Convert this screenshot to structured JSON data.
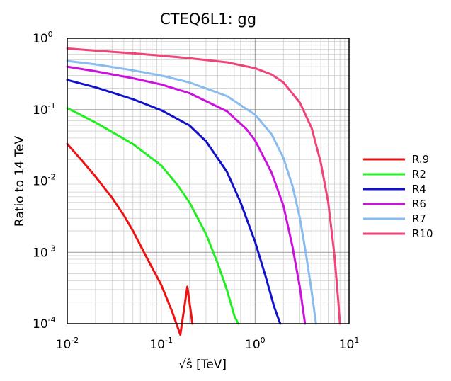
{
  "chart_data": {
    "type": "line",
    "title": "CTEQ6L1: gg",
    "xlabel": "√ŝ [TeV]",
    "ylabel": "Ratio to 14 TeV",
    "xscale": "log",
    "yscale": "log",
    "xlim": [
      0.01,
      10
    ],
    "ylim": [
      0.0001,
      1
    ],
    "grid": true,
    "legend_position": "right",
    "x_ticks": [
      {
        "base": "10",
        "exp": "-2"
      },
      {
        "base": "10",
        "exp": "-1"
      },
      {
        "base": "10",
        "exp": "0"
      },
      {
        "base": "10",
        "exp": "1"
      }
    ],
    "y_ticks": [
      {
        "base": "10",
        "exp": "-4"
      },
      {
        "base": "10",
        "exp": "-3"
      },
      {
        "base": "10",
        "exp": "-2"
      },
      {
        "base": "10",
        "exp": "-1"
      },
      {
        "base": "10",
        "exp": "0"
      }
    ],
    "series": [
      {
        "name": "R.9",
        "color": "#ee1111",
        "points": [
          [
            0.01,
            0.033
          ],
          [
            0.015,
            0.018
          ],
          [
            0.02,
            0.0115
          ],
          [
            0.03,
            0.0058
          ],
          [
            0.04,
            0.0033
          ],
          [
            0.05,
            0.002
          ],
          [
            0.07,
            0.00085
          ],
          [
            0.1,
            0.00035
          ],
          [
            0.13,
            0.00015
          ],
          [
            0.16,
            7e-05
          ],
          [
            0.19,
            0.00033
          ],
          [
            0.215,
            0.0001
          ]
        ]
      },
      {
        "name": "R2",
        "color": "#22ee22",
        "points": [
          [
            0.01,
            0.105
          ],
          [
            0.02,
            0.066
          ],
          [
            0.05,
            0.033
          ],
          [
            0.1,
            0.0165
          ],
          [
            0.15,
            0.0087
          ],
          [
            0.2,
            0.005
          ],
          [
            0.3,
            0.0018
          ],
          [
            0.4,
            0.0007
          ],
          [
            0.5,
            0.0003
          ],
          [
            0.6,
            0.00013
          ],
          [
            0.66,
            0.0001
          ]
        ]
      },
      {
        "name": "R4",
        "color": "#1111cc",
        "points": [
          [
            0.01,
            0.26
          ],
          [
            0.02,
            0.205
          ],
          [
            0.05,
            0.14
          ],
          [
            0.1,
            0.098
          ],
          [
            0.2,
            0.06
          ],
          [
            0.3,
            0.036
          ],
          [
            0.5,
            0.0135
          ],
          [
            0.7,
            0.005
          ],
          [
            1.0,
            0.0014
          ],
          [
            1.3,
            0.00045
          ],
          [
            1.6,
            0.00017
          ],
          [
            1.85,
            0.0001
          ]
        ]
      },
      {
        "name": "R6",
        "color": "#cc11dd",
        "points": [
          [
            0.01,
            0.4
          ],
          [
            0.02,
            0.345
          ],
          [
            0.05,
            0.275
          ],
          [
            0.1,
            0.225
          ],
          [
            0.2,
            0.17
          ],
          [
            0.5,
            0.095
          ],
          [
            0.8,
            0.054
          ],
          [
            1.0,
            0.037
          ],
          [
            1.5,
            0.013
          ],
          [
            2.0,
            0.0045
          ],
          [
            2.5,
            0.0012
          ],
          [
            3.0,
            0.00032
          ],
          [
            3.4,
            0.0001
          ]
        ]
      },
      {
        "name": "R7",
        "color": "#88bbee",
        "points": [
          [
            0.01,
            0.48
          ],
          [
            0.02,
            0.43
          ],
          [
            0.05,
            0.355
          ],
          [
            0.1,
            0.3
          ],
          [
            0.2,
            0.24
          ],
          [
            0.5,
            0.155
          ],
          [
            1.0,
            0.085
          ],
          [
            1.5,
            0.045
          ],
          [
            2.0,
            0.021
          ],
          [
            2.5,
            0.0085
          ],
          [
            3.0,
            0.003
          ],
          [
            3.5,
            0.0009
          ],
          [
            4.0,
            0.00028
          ],
          [
            4.45,
            0.0001
          ]
        ]
      },
      {
        "name": "R10",
        "color": "#ee4477",
        "points": [
          [
            0.01,
            0.72
          ],
          [
            0.02,
            0.67
          ],
          [
            0.05,
            0.615
          ],
          [
            0.1,
            0.57
          ],
          [
            0.2,
            0.525
          ],
          [
            0.5,
            0.46
          ],
          [
            1.0,
            0.38
          ],
          [
            1.5,
            0.31
          ],
          [
            2.0,
            0.24
          ],
          [
            3.0,
            0.125
          ],
          [
            4.0,
            0.055
          ],
          [
            5.0,
            0.018
          ],
          [
            6.0,
            0.005
          ],
          [
            7.0,
            0.0009
          ],
          [
            7.7,
            0.0002
          ],
          [
            8.0,
            0.0001
          ]
        ]
      }
    ]
  }
}
